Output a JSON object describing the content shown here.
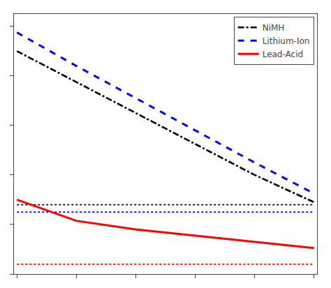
{
  "chart_data": {
    "type": "line",
    "x": [
      0,
      1,
      2,
      3,
      4,
      5
    ],
    "series": [
      {
        "name": "NiMH",
        "color": "#000000",
        "line_style": "dashdot",
        "values": [
          1.8,
          1.55,
          1.3,
          1.05,
          0.8,
          0.58
        ]
      },
      {
        "color": "#000000",
        "line_style": "dotted",
        "values": [
          0.56,
          0.56,
          0.56,
          0.56,
          0.56,
          0.56
        ]
      },
      {
        "name": "Lithium-Ion",
        "color": "#0000ff",
        "line_style": "dashed",
        "values": [
          1.95,
          1.68,
          1.42,
          1.16,
          0.9,
          0.65
        ]
      },
      {
        "color": "#0000ff",
        "line_style": "dotted",
        "values": [
          0.5,
          0.5,
          0.5,
          0.5,
          0.5,
          0.5
        ]
      },
      {
        "name": "Lead-Acid",
        "color": "#ff0000",
        "line_style": "solid",
        "values": [
          0.6,
          0.43,
          0.36,
          0.31,
          0.26,
          0.21
        ]
      },
      {
        "color": "#ff0000",
        "line_style": "dotted",
        "values": [
          0.08,
          0.08,
          0.08,
          0.08,
          0.08,
          0.08
        ]
      }
    ],
    "xlim": [
      -0.05,
      5.05
    ],
    "xticks": [
      0,
      1,
      2,
      3,
      4,
      5
    ],
    "ylim": [
      0.0,
      2.1
    ],
    "yticks": [
      0.0,
      0.4,
      0.8,
      1.2,
      1.6,
      2.0
    ],
    "grid": false,
    "legend": "upper right",
    "tick_labels": false
  }
}
